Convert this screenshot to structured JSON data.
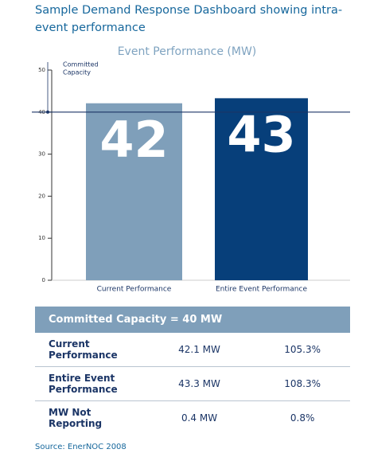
{
  "header": {
    "title": "Sample Demand Response Dashboard showing intra-event performance"
  },
  "chart_data": {
    "type": "bar",
    "title": "Event Performance (MW)",
    "categories": [
      "Current Performance",
      "Entire Event Performance"
    ],
    "series": [
      {
        "name": "Event Performance",
        "colors": [
          "#7f9fba",
          "#073f7a"
        ],
        "values": [
          42.1,
          43.3
        ],
        "value_labels": [
          "42",
          "43"
        ]
      }
    ],
    "ylim": [
      0,
      50
    ],
    "yticks": [
      0,
      10,
      20,
      30,
      40,
      50
    ],
    "reference_line": {
      "value": 40,
      "label": [
        "Committed",
        "Capacity"
      ]
    }
  },
  "table": {
    "header": "Committed Capacity = 40 MW",
    "rows": [
      [
        "Current Performance",
        "42.1 MW",
        "105.3%"
      ],
      [
        "Entire Event Performance",
        "43.3 MW",
        "108.3%"
      ],
      [
        "MW Not Reporting",
        "0.4 MW",
        "0.8%"
      ]
    ]
  },
  "source": "Source: EnerNOC 2008"
}
